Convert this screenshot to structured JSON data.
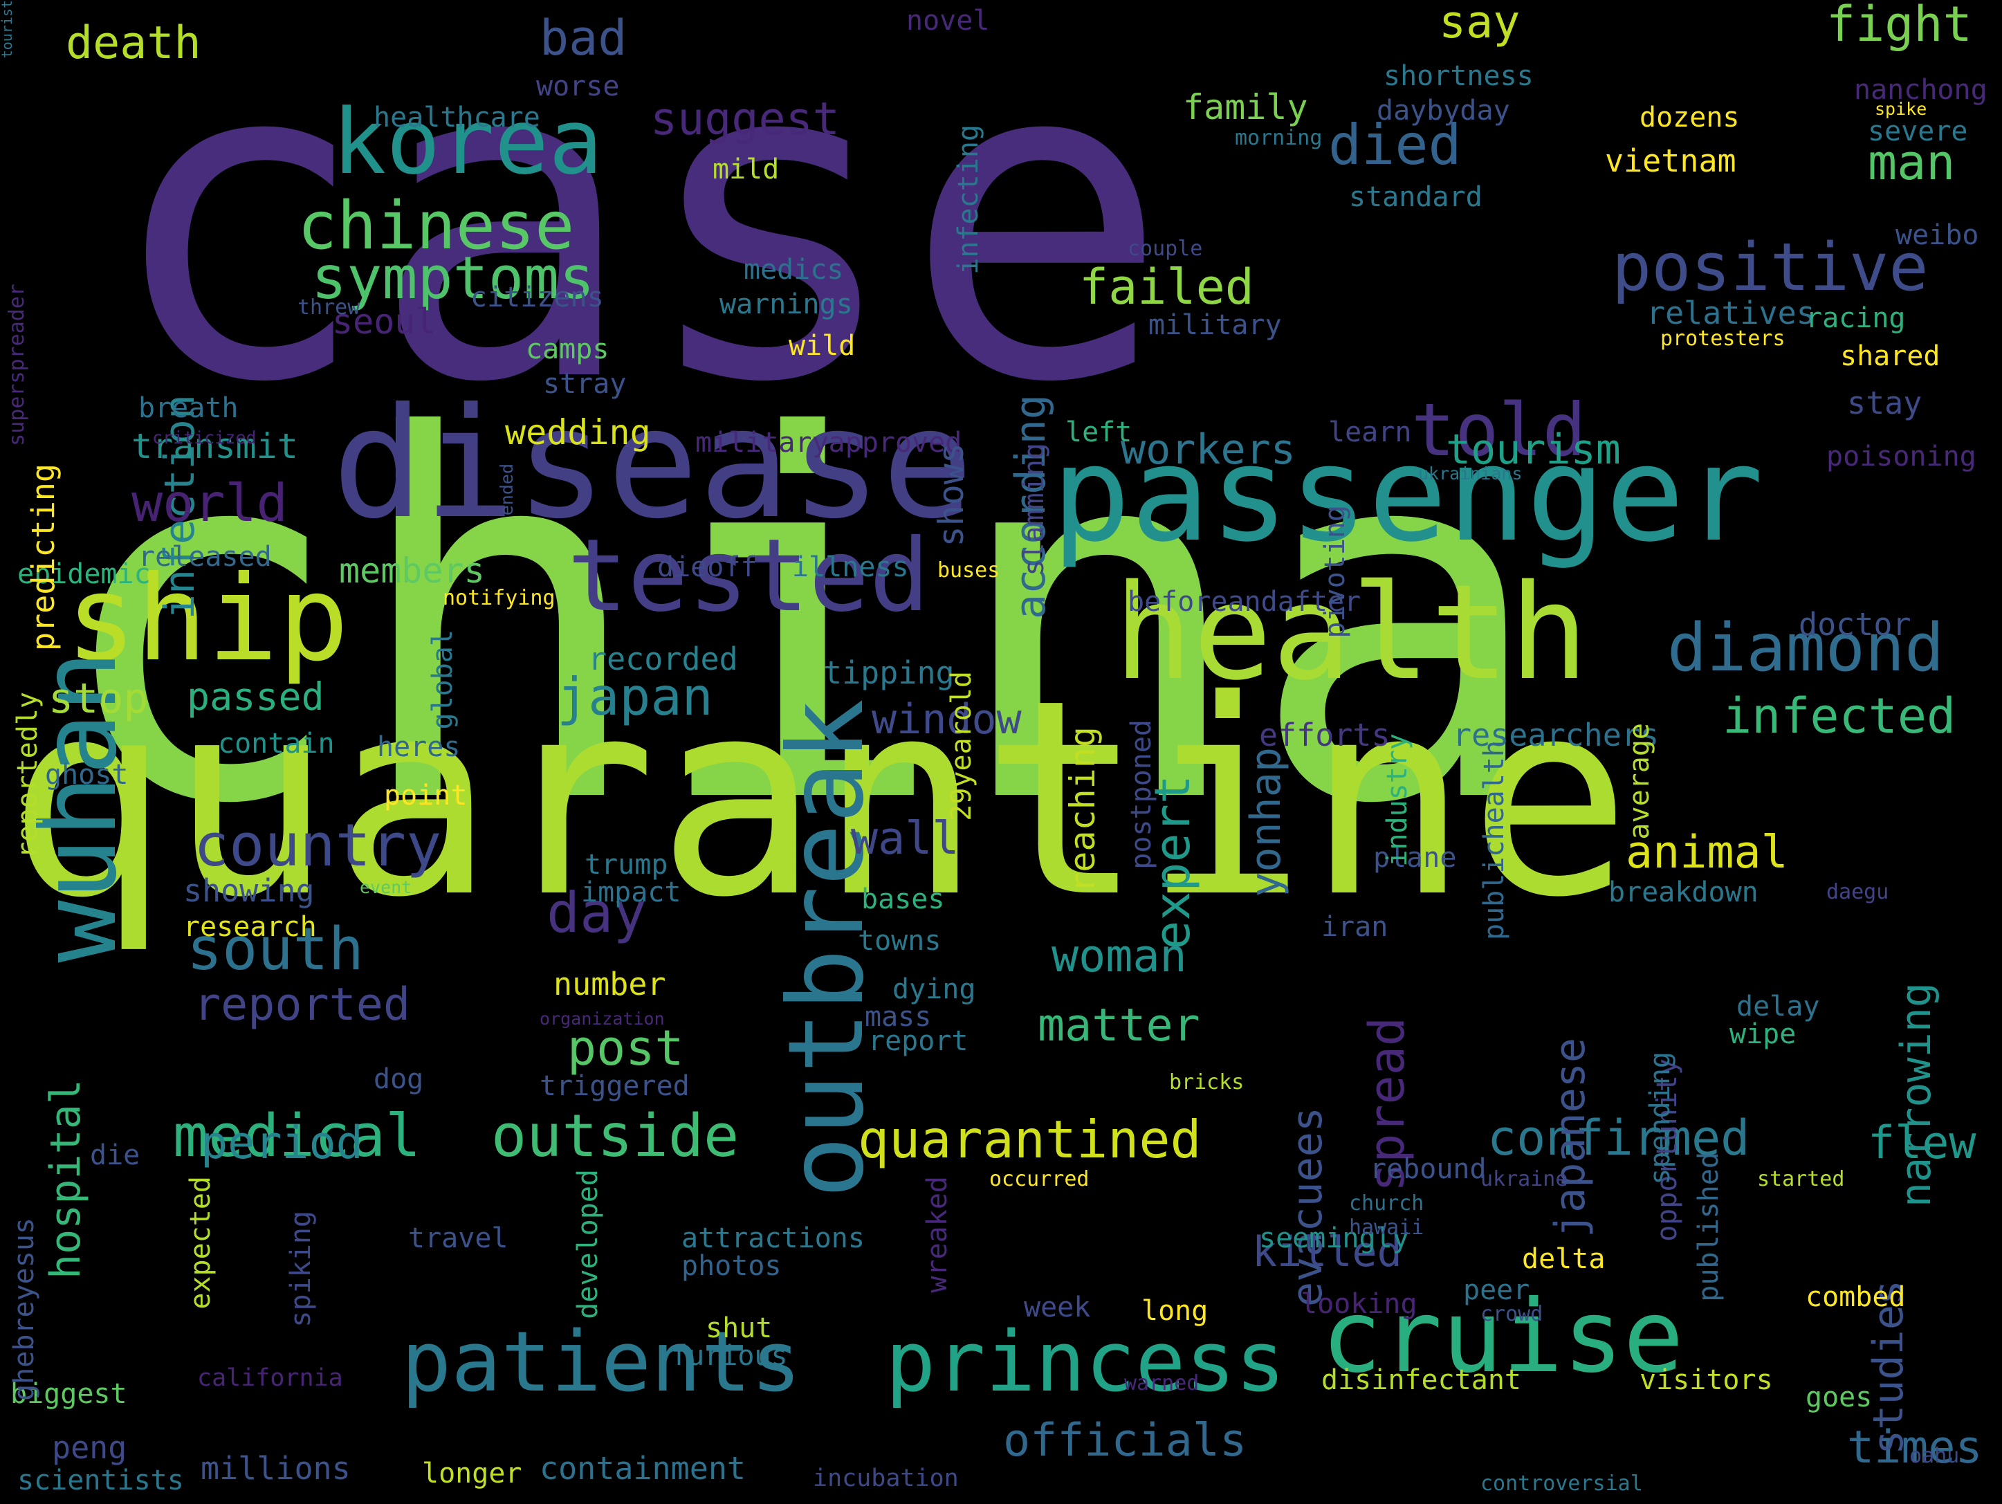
{
  "words": [
    {
      "text": "case",
      "color": "#472d7b",
      "rotate": false
    },
    {
      "text": "china",
      "color": "#86d549",
      "rotate": false
    },
    {
      "text": "quarantine",
      "color": "#addc30",
      "rotate": false
    },
    {
      "text": "disease",
      "color": "#423f85",
      "rotate": false
    },
    {
      "text": "passenger",
      "color": "#22908d",
      "rotate": false
    },
    {
      "text": "health",
      "color": "#a8db34",
      "rotate": false
    },
    {
      "text": "ship",
      "color": "#bade28",
      "rotate": false
    },
    {
      "text": "wuhan",
      "color": "#25838e",
      "rotate": true
    },
    {
      "text": "tested",
      "color": "#433e85",
      "rotate": false
    },
    {
      "text": "cruise",
      "color": "#29af7f",
      "rotate": false
    },
    {
      "text": "patients",
      "color": "#2a788e",
      "rotate": false
    },
    {
      "text": "princess",
      "color": "#20a386",
      "rotate": false
    },
    {
      "text": "outbreak",
      "color": "#2a768e",
      "rotate": true
    },
    {
      "text": "korea",
      "color": "#21918c",
      "rotate": false
    },
    {
      "text": "diamond",
      "color": "#2f6c8e",
      "rotate": false
    },
    {
      "text": "positive",
      "color": "#3e4c8a",
      "rotate": false
    },
    {
      "text": "chinese",
      "color": "#58c765",
      "rotate": false
    },
    {
      "text": "symptoms",
      "color": "#4ec36b",
      "rotate": false
    },
    {
      "text": "medical",
      "color": "#2db27d",
      "rotate": false
    },
    {
      "text": "outside",
      "color": "#3fbc73",
      "rotate": false
    },
    {
      "text": "quarantined",
      "color": "#d0e11c",
      "rotate": false
    },
    {
      "text": "infected",
      "color": "#38b977",
      "rotate": false
    },
    {
      "text": "confirmed",
      "color": "#2a788e",
      "rotate": false
    },
    {
      "text": "told",
      "color": "#46327e",
      "rotate": false
    },
    {
      "text": "died",
      "color": "#33638d",
      "rotate": false
    },
    {
      "text": "country",
      "color": "#3e4989",
      "rotate": false
    },
    {
      "text": "south",
      "color": "#2c728e",
      "rotate": false
    },
    {
      "text": "japan",
      "color": "#27808e",
      "rotate": false
    },
    {
      "text": "according",
      "color": "#31688e",
      "rotate": true
    },
    {
      "text": "infection",
      "color": "#25848e",
      "rotate": true
    },
    {
      "text": "world",
      "color": "#482374",
      "rotate": false
    },
    {
      "text": "failed",
      "color": "#8fd744",
      "rotate": false
    },
    {
      "text": "workers",
      "color": "#2b758e",
      "rotate": false
    },
    {
      "text": "tourism",
      "color": "#1fa088",
      "rotate": false
    },
    {
      "text": "fight",
      "color": "#7ad151",
      "rotate": false
    },
    {
      "text": "man",
      "color": "#55c667",
      "rotate": false
    },
    {
      "text": "say",
      "color": "#c2df23",
      "rotate": false
    },
    {
      "text": "death",
      "color": "#b5de2b",
      "rotate": false
    },
    {
      "text": "bad",
      "color": "#3b528b",
      "rotate": false
    },
    {
      "text": "suggest",
      "color": "#482878",
      "rotate": false
    },
    {
      "text": "expert",
      "color": "#1f9a8a",
      "rotate": true
    },
    {
      "text": "window",
      "color": "#3e4a89",
      "rotate": false
    },
    {
      "text": "animal",
      "color": "#dde318",
      "rotate": false
    },
    {
      "text": "day",
      "color": "#46327e",
      "rotate": false
    },
    {
      "text": "wall",
      "color": "#3f4788",
      "rotate": false
    },
    {
      "text": "woman",
      "color": "#21918c",
      "rotate": false
    },
    {
      "text": "matter",
      "color": "#37b878",
      "rotate": false
    },
    {
      "text": "post",
      "color": "#56c667",
      "rotate": false
    },
    {
      "text": "reported",
      "color": "#414487",
      "rotate": false
    },
    {
      "text": "period",
      "color": "#25848e",
      "rotate": false
    },
    {
      "text": "officials",
      "color": "#31688e",
      "rotate": false
    },
    {
      "text": "times",
      "color": "#31688e",
      "rotate": false
    },
    {
      "text": "flew",
      "color": "#1f988b",
      "rotate": false
    },
    {
      "text": "spread",
      "color": "#482878",
      "rotate": true
    },
    {
      "text": "japanese",
      "color": "#3b528b",
      "rotate": true
    },
    {
      "text": "narrowing",
      "color": "#20928c",
      "rotate": true
    },
    {
      "text": "evacuees",
      "color": "#3b528b",
      "rotate": true
    },
    {
      "text": "studies",
      "color": "#3b528b",
      "rotate": true
    },
    {
      "text": "killed",
      "color": "#3e4989",
      "rotate": false
    },
    {
      "text": "stop",
      "color": "#a5db36",
      "rotate": false
    },
    {
      "text": "passed",
      "color": "#2ab07f",
      "rotate": false
    },
    {
      "text": "hospital",
      "color": "#35b779",
      "rotate": true
    },
    {
      "text": "transmit",
      "color": "#21918c",
      "rotate": false
    },
    {
      "text": "members",
      "color": "#5ec962",
      "rotate": false
    },
    {
      "text": "wedding",
      "color": "#dae319",
      "rotate": false
    },
    {
      "text": "seoul",
      "color": "#482475",
      "rotate": false
    },
    {
      "text": "family",
      "color": "#7ad151",
      "rotate": false
    },
    {
      "text": "vietnam",
      "color": "#fde725",
      "rotate": false
    },
    {
      "text": "relatives",
      "color": "#2c728e",
      "rotate": false
    },
    {
      "text": "stay",
      "color": "#3e4a89",
      "rotate": false
    },
    {
      "text": "doctor",
      "color": "#3b528b",
      "rotate": false
    },
    {
      "text": "efforts",
      "color": "#453781",
      "rotate": false
    },
    {
      "text": "researchers",
      "color": "#2c728e",
      "rotate": false
    },
    {
      "text": "recorded",
      "color": "#26828e",
      "rotate": false
    },
    {
      "text": "showing",
      "color": "#3b528b",
      "rotate": false
    },
    {
      "text": "research",
      "color": "#e2e418",
      "rotate": false
    },
    {
      "text": "number",
      "color": "#dde318",
      "rotate": false
    },
    {
      "text": "peng",
      "color": "#3e4989",
      "rotate": false
    },
    {
      "text": "millions",
      "color": "#3b528b",
      "rotate": false
    },
    {
      "text": "scientists",
      "color": "#2a788e",
      "rotate": false
    },
    {
      "text": "longer",
      "color": "#c2df23",
      "rotate": false
    },
    {
      "text": "containment",
      "color": "#2c728e",
      "rotate": false
    },
    {
      "text": "incubation",
      "color": "#3e4989",
      "rotate": false
    },
    {
      "text": "die",
      "color": "#3b528b",
      "rotate": false
    },
    {
      "text": "biggest",
      "color": "#5ec962",
      "rotate": false
    },
    {
      "text": "california",
      "color": "#482475",
      "rotate": false
    },
    {
      "text": "furious",
      "color": "#2a788e",
      "rotate": false
    },
    {
      "text": "shut",
      "color": "#b5de2b",
      "rotate": false
    },
    {
      "text": "photos",
      "color": "#33638d",
      "rotate": false
    },
    {
      "text": "attractions",
      "color": "#2a788e",
      "rotate": false
    },
    {
      "text": "travel",
      "color": "#3b528b",
      "rotate": false
    },
    {
      "text": "week",
      "color": "#3e4a89",
      "rotate": false
    },
    {
      "text": "long",
      "color": "#fde725",
      "rotate": false
    },
    {
      "text": "looking",
      "color": "#482475",
      "rotate": false
    },
    {
      "text": "peer",
      "color": "#2c728e",
      "rotate": false
    },
    {
      "text": "delta",
      "color": "#fde725",
      "rotate": false
    },
    {
      "text": "seemingly",
      "color": "#20928c",
      "rotate": false
    },
    {
      "text": "rebound",
      "color": "#3b528b",
      "rotate": false
    },
    {
      "text": "disinfectant",
      "color": "#b5de2b",
      "rotate": false
    },
    {
      "text": "visitors",
      "color": "#c2df23",
      "rotate": false
    },
    {
      "text": "combed",
      "color": "#fde725",
      "rotate": false
    },
    {
      "text": "goes",
      "color": "#5ec962",
      "rotate": false
    },
    {
      "text": "oahu",
      "color": "#3e4989",
      "rotate": false
    },
    {
      "text": "controversial",
      "color": "#2a788e",
      "rotate": false
    },
    {
      "text": "crowd",
      "color": "#3b528b",
      "rotate": false
    },
    {
      "text": "church",
      "color": "#2c728e",
      "rotate": false
    },
    {
      "text": "hawaii",
      "color": "#3b528b",
      "rotate": false
    },
    {
      "text": "ukraine",
      "color": "#414487",
      "rotate": false
    },
    {
      "text": "started",
      "color": "#b5de2b",
      "rotate": false
    },
    {
      "text": "occurred",
      "color": "#fde725",
      "rotate": false
    },
    {
      "text": "warned",
      "color": "#482878",
      "rotate": false
    },
    {
      "text": "tipping",
      "color": "#2a788e",
      "rotate": false
    },
    {
      "text": "contain",
      "color": "#20928c",
      "rotate": false
    },
    {
      "text": "heres",
      "color": "#31688e",
      "rotate": false
    },
    {
      "text": "ghost",
      "color": "#31688e",
      "rotate": false
    },
    {
      "text": "point",
      "color": "#fde725",
      "rotate": false
    },
    {
      "text": "released",
      "color": "#31688e",
      "rotate": false
    },
    {
      "text": "epidemic",
      "color": "#2db27d",
      "rotate": false
    },
    {
      "text": "notifying",
      "color": "#fde725",
      "rotate": false
    },
    {
      "text": "dieoff",
      "color": "#3e4989",
      "rotate": false
    },
    {
      "text": "illness",
      "color": "#2a788e",
      "rotate": false
    },
    {
      "text": "buses",
      "color": "#fde725",
      "rotate": false
    },
    {
      "text": "beforeandafter",
      "color": "#3e4a89",
      "rotate": false
    },
    {
      "text": "left",
      "color": "#2db27d",
      "rotate": false
    },
    {
      "text": "learn",
      "color": "#414487",
      "rotate": false
    },
    {
      "text": "poisoning",
      "color": "#482878",
      "rotate": false
    },
    {
      "text": "ukrainians",
      "color": "#2a788e",
      "rotate": false
    },
    {
      "text": "militaryapproved",
      "color": "#482878",
      "rotate": false
    },
    {
      "text": "breath",
      "color": "#2c728e",
      "rotate": false
    },
    {
      "text": "criticized",
      "color": "#482475",
      "rotate": false
    },
    {
      "text": "stray",
      "color": "#3b528b",
      "rotate": false
    },
    {
      "text": "camps",
      "color": "#5ec962",
      "rotate": false
    },
    {
      "text": "citizens",
      "color": "#3b528b",
      "rotate": false
    },
    {
      "text": "threw",
      "color": "#3b528b",
      "rotate": false
    },
    {
      "text": "healthcare",
      "color": "#2a788e",
      "rotate": false
    },
    {
      "text": "worse",
      "color": "#414487",
      "rotate": false
    },
    {
      "text": "novel",
      "color": "#482878",
      "rotate": false
    },
    {
      "text": "mild",
      "color": "#b5de2b",
      "rotate": false
    },
    {
      "text": "medics",
      "color": "#2c728e",
      "rotate": false
    },
    {
      "text": "warnings",
      "color": "#2a788e",
      "rotate": false
    },
    {
      "text": "wild",
      "color": "#fde725",
      "rotate": false
    },
    {
      "text": "shortness",
      "color": "#2a788e",
      "rotate": false
    },
    {
      "text": "daybyday",
      "color": "#3b528b",
      "rotate": false
    },
    {
      "text": "morning",
      "color": "#2a788e",
      "rotate": false
    },
    {
      "text": "dozens",
      "color": "#fde725",
      "rotate": false
    },
    {
      "text": "standard",
      "color": "#2a788e",
      "rotate": false
    },
    {
      "text": "couple",
      "color": "#3e4989",
      "rotate": false
    },
    {
      "text": "military",
      "color": "#3b528b",
      "rotate": false
    },
    {
      "text": "nanchong",
      "color": "#482878",
      "rotate": false
    },
    {
      "text": "spike",
      "color": "#fde725",
      "rotate": false
    },
    {
      "text": "severe",
      "color": "#2a788e",
      "rotate": false
    },
    {
      "text": "weibo",
      "color": "#3b528b",
      "rotate": false
    },
    {
      "text": "racing",
      "color": "#2db27d",
      "rotate": false
    },
    {
      "text": "protesters",
      "color": "#fde725",
      "rotate": false
    },
    {
      "text": "shared",
      "color": "#fde725",
      "rotate": false
    },
    {
      "text": "trump",
      "color": "#2a788e",
      "rotate": false
    },
    {
      "text": "impact",
      "color": "#2c728e",
      "rotate": false
    },
    {
      "text": "bases",
      "color": "#2db27d",
      "rotate": false
    },
    {
      "text": "towns",
      "color": "#2a788e",
      "rotate": false
    },
    {
      "text": "dying",
      "color": "#2a788e",
      "rotate": false
    },
    {
      "text": "mass",
      "color": "#3b528b",
      "rotate": false
    },
    {
      "text": "report",
      "color": "#2a788e",
      "rotate": false
    },
    {
      "text": "event",
      "color": "#5ec962",
      "rotate": false
    },
    {
      "text": "dog",
      "color": "#3b528b",
      "rotate": false
    },
    {
      "text": "triggered",
      "color": "#3b528b",
      "rotate": false
    },
    {
      "text": "organization",
      "color": "#482878",
      "rotate": false
    },
    {
      "text": "bricks",
      "color": "#b5de2b",
      "rotate": false
    },
    {
      "text": "plane",
      "color": "#3b528b",
      "rotate": false
    },
    {
      "text": "breakdown",
      "color": "#2a788e",
      "rotate": false
    },
    {
      "text": "daegu",
      "color": "#414487",
      "rotate": false
    },
    {
      "text": "iran",
      "color": "#3b528b",
      "rotate": false
    },
    {
      "text": "delay",
      "color": "#2c728e",
      "rotate": false
    },
    {
      "text": "wipe",
      "color": "#2db27d",
      "rotate": false
    },
    {
      "text": "superspreader",
      "color": "#482878",
      "rotate": true
    },
    {
      "text": "predicting",
      "color": "#fde725",
      "rotate": true
    },
    {
      "text": "ended",
      "color": "#3b528b",
      "rotate": true
    },
    {
      "text": "reportedly",
      "color": "#b5de2b",
      "rotate": true
    },
    {
      "text": "ghebreyesus",
      "color": "#3b528b",
      "rotate": true
    },
    {
      "text": "global",
      "color": "#2a788e",
      "rotate": true
    },
    {
      "text": "expected",
      "color": "#b5de2b",
      "rotate": true
    },
    {
      "text": "spiking",
      "color": "#3e4989",
      "rotate": true
    },
    {
      "text": "developed",
      "color": "#2db27d",
      "rotate": true
    },
    {
      "text": "wreaked",
      "color": "#482878",
      "rotate": true
    },
    {
      "text": "slamming",
      "color": "#414487",
      "rotate": true
    },
    {
      "text": "infecting",
      "color": "#2a788e",
      "rotate": true
    },
    {
      "text": "29yearold",
      "color": "#c2df23",
      "rotate": true
    },
    {
      "text": "shows",
      "color": "#3b528b",
      "rotate": true
    },
    {
      "text": "yonhap",
      "color": "#31688e",
      "rotate": true
    },
    {
      "text": "pivoting",
      "color": "#3b528b",
      "rotate": true
    },
    {
      "text": "reaching",
      "color": "#c2df23",
      "rotate": true
    },
    {
      "text": "postponed",
      "color": "#3e4989",
      "rotate": true
    },
    {
      "text": "industry",
      "color": "#2db27d",
      "rotate": true
    },
    {
      "text": "publichealth",
      "color": "#31688e",
      "rotate": true
    },
    {
      "text": "average",
      "color": "#b5de2b",
      "rotate": true
    },
    {
      "text": "published",
      "color": "#31688e",
      "rotate": true
    },
    {
      "text": "opportunity",
      "color": "#414487",
      "rotate": true
    },
    {
      "text": "spending",
      "color": "#2c728e",
      "rotate": true
    },
    {
      "text": "tourist",
      "color": "#2a788e",
      "rotate": true
    }
  ]
}
